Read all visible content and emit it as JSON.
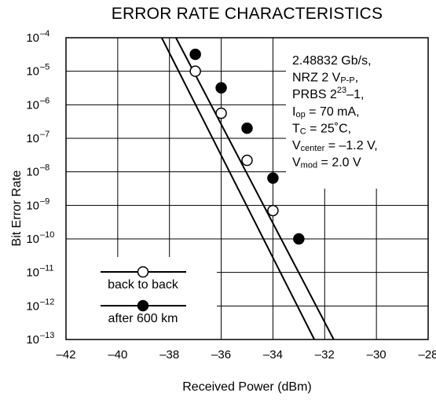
{
  "chart_data": {
    "type": "line",
    "title": "ERROR RATE CHARACTERISTICS",
    "xlabel": "Received Power (dBm)",
    "ylabel": "Bit Error Rate",
    "xlim": [
      -42,
      -28
    ],
    "x_ticks": [
      -42,
      -40,
      -38,
      -36,
      -34,
      -32,
      -30,
      -28
    ],
    "x_tick_labels": [
      "–42",
      "–40",
      "–38",
      "–36",
      "–34",
      "–32",
      "–30",
      "–28"
    ],
    "y_scale": "log",
    "ylim_exponent": [
      -13,
      -4
    ],
    "y_tick_exponents": [
      -4,
      -5,
      -6,
      -7,
      -8,
      -9,
      -10,
      -11,
      -12,
      -13
    ],
    "grid": true,
    "series": [
      {
        "name": "back to back",
        "marker": "open-circle",
        "points": [
          {
            "x": -37.0,
            "y": 1e-05
          },
          {
            "x": -36.0,
            "y": 5.6e-07
          },
          {
            "x": -35.0,
            "y": 2.2e-08
          },
          {
            "x": -34.0,
            "y": 7e-10
          }
        ],
        "fit_line": [
          [
            -38.3,
            0.0001
          ],
          [
            -32.4,
            1e-13
          ]
        ]
      },
      {
        "name": "after 600 km",
        "marker": "filled-circle",
        "points": [
          {
            "x": -37.0,
            "y": 3.2e-05
          },
          {
            "x": -36.0,
            "y": 3.2e-06
          },
          {
            "x": -35.0,
            "y": 2e-07
          },
          {
            "x": -34.0,
            "y": 6.5e-09
          },
          {
            "x": -33.0,
            "y": 1e-10
          }
        ],
        "fit_line": [
          [
            -37.75,
            0.0001
          ],
          [
            -31.65,
            1e-13
          ]
        ]
      }
    ],
    "conditions": [
      {
        "main": "2.48832 Gb/s,",
        "sub": "",
        "tail": "",
        "sup": "",
        "end": ""
      },
      {
        "main": "NRZ 2 V",
        "sub": "P-P",
        "tail": ",",
        "sup": "",
        "end": ""
      },
      {
        "main": "PRBS 2",
        "sub": "",
        "tail": "",
        "sup": "23",
        "end": "–1,"
      },
      {
        "main": "I",
        "sub": "op",
        "tail": " = 70 mA,",
        "sup": "",
        "end": ""
      },
      {
        "main": "T",
        "sub": "C",
        "tail": " = 25˚C,",
        "sup": "",
        "end": ""
      },
      {
        "main": "V",
        "sub": "center",
        "tail": " = –1.2 V,",
        "sup": "",
        "end": ""
      },
      {
        "main": "V",
        "sub": "mod",
        "tail": " = 2.0 V",
        "sup": "",
        "end": ""
      }
    ],
    "legend": [
      "back to back",
      "after 600 km"
    ],
    "legend_position": "bottom-left"
  }
}
